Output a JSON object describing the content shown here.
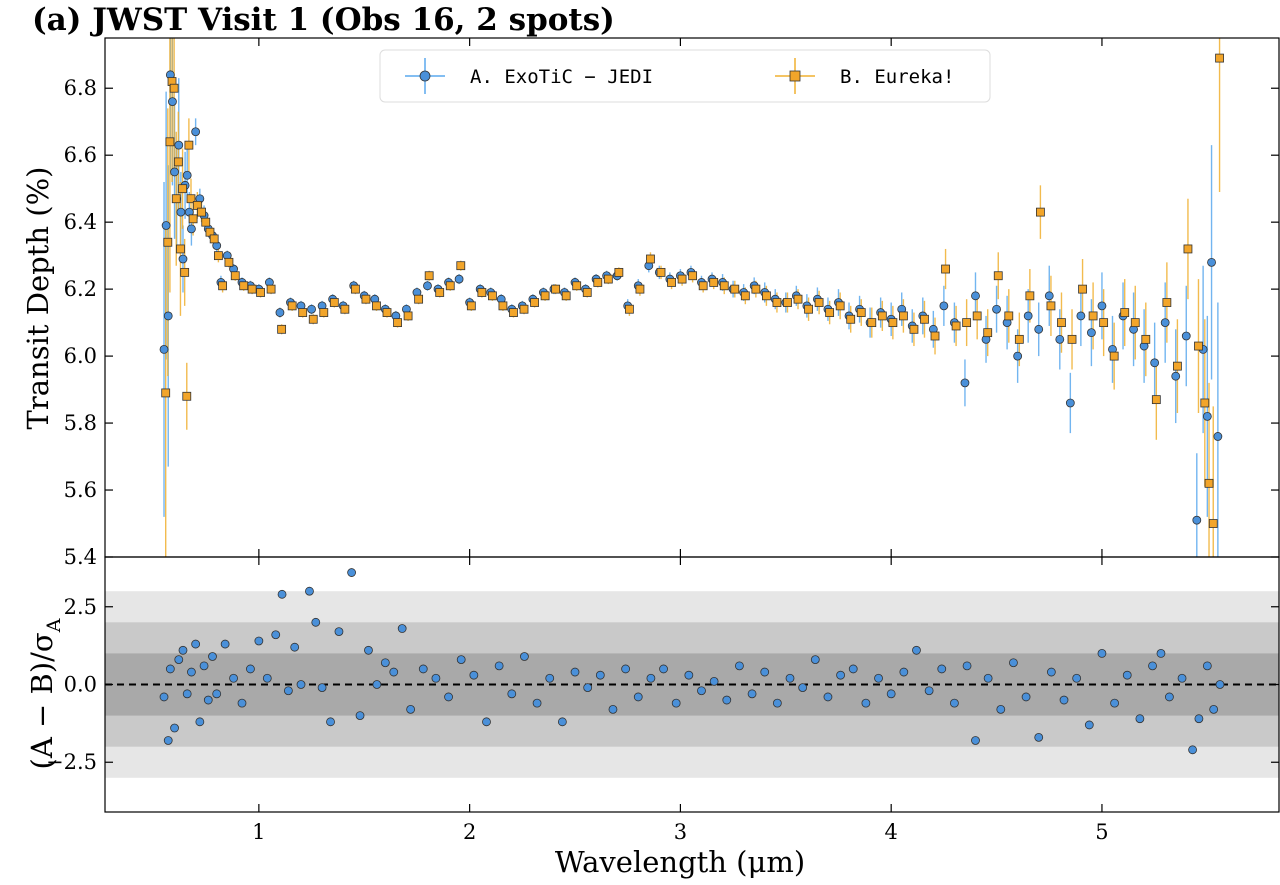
{
  "chart_data": [
    {
      "type": "scatter",
      "title": "(a) JWST Visit 1 (Obs 16, 2 spots)",
      "xlabel": "",
      "ylabel": "Transit Depth (%)",
      "xlim": [
        0.27,
        5.84
      ],
      "ylim": [
        5.4,
        6.95
      ],
      "xticks": [
        "1",
        "2",
        "3",
        "4",
        "5"
      ],
      "yticks": [
        "5.4",
        "5.6",
        "5.8",
        "6.0",
        "6.2",
        "6.4",
        "6.6",
        "6.8"
      ],
      "legend_placement": "top-center",
      "colors": {
        "A": "#4a90d9",
        "A_err": "#5aa9ee",
        "B": "#f2a52a",
        "B_err": "#f0b030",
        "edge": "#333333"
      },
      "series": [
        {
          "name": "A. ExoTiC − JEDI",
          "marker": "circle",
          "x": [
            0.55,
            0.56,
            0.57,
            0.58,
            0.59,
            0.6,
            0.61,
            0.62,
            0.63,
            0.64,
            0.65,
            0.66,
            0.67,
            0.68,
            0.7,
            0.72,
            0.74,
            0.76,
            0.78,
            0.8,
            0.82,
            0.85,
            0.88,
            0.92,
            0.96,
            1.0,
            1.05,
            1.1,
            1.15,
            1.2,
            1.25,
            1.3,
            1.35,
            1.4,
            1.45,
            1.5,
            1.55,
            1.6,
            1.65,
            1.7,
            1.75,
            1.8,
            1.85,
            1.9,
            1.95,
            2.0,
            2.05,
            2.1,
            2.15,
            2.2,
            2.25,
            2.3,
            2.35,
            2.4,
            2.45,
            2.5,
            2.55,
            2.6,
            2.65,
            2.7,
            2.75,
            2.8,
            2.85,
            2.9,
            2.95,
            3.0,
            3.05,
            3.1,
            3.15,
            3.2,
            3.25,
            3.3,
            3.35,
            3.4,
            3.45,
            3.5,
            3.55,
            3.6,
            3.65,
            3.7,
            3.75,
            3.8,
            3.85,
            3.9,
            3.95,
            4.0,
            4.05,
            4.1,
            4.15,
            4.2,
            4.25,
            4.3,
            4.35,
            4.4,
            4.45,
            4.5,
            4.55,
            4.6,
            4.65,
            4.7,
            4.75,
            4.8,
            4.85,
            4.9,
            4.95,
            5.0,
            5.05,
            5.1,
            5.15,
            5.2,
            5.25,
            5.3,
            5.35,
            5.4,
            5.45,
            5.48,
            5.5,
            5.52,
            5.55
          ],
          "y": [
            6.02,
            6.39,
            6.12,
            6.84,
            6.76,
            6.55,
            6.47,
            6.63,
            6.43,
            6.29,
            6.51,
            6.54,
            6.43,
            6.38,
            6.67,
            6.47,
            6.42,
            6.38,
            6.36,
            6.33,
            6.22,
            6.3,
            6.26,
            6.22,
            6.21,
            6.2,
            6.22,
            6.13,
            6.16,
            6.15,
            6.14,
            6.15,
            6.17,
            6.15,
            6.21,
            6.18,
            6.17,
            6.14,
            6.12,
            6.14,
            6.19,
            6.21,
            6.2,
            6.22,
            6.23,
            6.16,
            6.2,
            6.19,
            6.17,
            6.14,
            6.15,
            6.17,
            6.19,
            6.2,
            6.19,
            6.22,
            6.2,
            6.23,
            6.24,
            6.24,
            6.15,
            6.21,
            6.27,
            6.25,
            6.23,
            6.24,
            6.25,
            6.22,
            6.23,
            6.22,
            6.2,
            6.19,
            6.21,
            6.19,
            6.17,
            6.16,
            6.18,
            6.15,
            6.17,
            6.14,
            6.16,
            6.12,
            6.14,
            6.1,
            6.13,
            6.11,
            6.14,
            6.09,
            6.12,
            6.08,
            6.15,
            6.1,
            5.92,
            6.18,
            6.05,
            6.14,
            6.1,
            6.0,
            6.12,
            6.08,
            6.18,
            6.05,
            5.86,
            6.12,
            6.07,
            6.15,
            6.02,
            6.12,
            6.08,
            6.03,
            5.98,
            6.1,
            5.94,
            6.06,
            5.51,
            6.02,
            5.82,
            6.28,
            5.76
          ],
          "err": [
            0.5,
            0.4,
            0.45,
            0.3,
            0.25,
            0.2,
            0.15,
            0.2,
            0.12,
            0.1,
            0.1,
            0.08,
            0.06,
            0.05,
            0.04,
            0.03,
            0.03,
            0.02,
            0.02,
            0.02,
            0.02,
            0.015,
            0.015,
            0.015,
            0.015,
            0.015,
            0.015,
            0.015,
            0.015,
            0.015,
            0.015,
            0.015,
            0.015,
            0.015,
            0.015,
            0.015,
            0.015,
            0.015,
            0.015,
            0.015,
            0.015,
            0.015,
            0.015,
            0.015,
            0.015,
            0.015,
            0.015,
            0.015,
            0.015,
            0.015,
            0.015,
            0.015,
            0.015,
            0.015,
            0.015,
            0.015,
            0.015,
            0.015,
            0.015,
            0.015,
            0.02,
            0.02,
            0.02,
            0.02,
            0.02,
            0.02,
            0.02,
            0.02,
            0.02,
            0.025,
            0.025,
            0.025,
            0.025,
            0.03,
            0.03,
            0.03,
            0.03,
            0.035,
            0.035,
            0.035,
            0.04,
            0.04,
            0.04,
            0.045,
            0.045,
            0.05,
            0.05,
            0.05,
            0.055,
            0.055,
            0.06,
            0.06,
            0.07,
            0.07,
            0.07,
            0.07,
            0.08,
            0.08,
            0.08,
            0.08,
            0.09,
            0.09,
            0.09,
            0.09,
            0.1,
            0.1,
            0.1,
            0.1,
            0.11,
            0.11,
            0.12,
            0.12,
            0.14,
            0.15,
            0.2,
            0.25,
            0.3,
            0.35,
            0.4
          ]
        },
        {
          "name": "B. Eureka!",
          "marker": "square",
          "x": [
            0.55,
            0.56,
            0.57,
            0.58,
            0.59,
            0.6,
            0.61,
            0.62,
            0.63,
            0.64,
            0.65,
            0.66,
            0.67,
            0.68,
            0.7,
            0.72,
            0.74,
            0.76,
            0.78,
            0.8,
            0.82,
            0.85,
            0.88,
            0.92,
            0.96,
            1.0,
            1.05,
            1.1,
            1.15,
            1.2,
            1.25,
            1.3,
            1.35,
            1.4,
            1.45,
            1.5,
            1.55,
            1.6,
            1.65,
            1.7,
            1.75,
            1.8,
            1.85,
            1.9,
            1.95,
            2.0,
            2.05,
            2.1,
            2.15,
            2.2,
            2.25,
            2.3,
            2.35,
            2.4,
            2.45,
            2.5,
            2.55,
            2.6,
            2.65,
            2.7,
            2.75,
            2.8,
            2.85,
            2.9,
            2.95,
            3.0,
            3.05,
            3.1,
            3.15,
            3.2,
            3.25,
            3.3,
            3.35,
            3.4,
            3.45,
            3.5,
            3.55,
            3.6,
            3.65,
            3.7,
            3.75,
            3.8,
            3.85,
            3.9,
            3.95,
            4.0,
            4.05,
            4.1,
            4.15,
            4.2,
            4.25,
            4.3,
            4.35,
            4.4,
            4.45,
            4.5,
            4.55,
            4.6,
            4.65,
            4.7,
            4.75,
            4.8,
            4.85,
            4.9,
            4.95,
            5.0,
            5.05,
            5.1,
            5.15,
            5.2,
            5.25,
            5.3,
            5.35,
            5.4,
            5.45,
            5.48,
            5.5,
            5.52,
            5.55
          ],
          "y": [
            5.89,
            6.34,
            6.64,
            6.82,
            6.8,
            6.47,
            6.58,
            6.32,
            6.5,
            6.25,
            5.88,
            6.63,
            6.47,
            6.41,
            6.45,
            6.43,
            6.4,
            6.37,
            6.35,
            6.3,
            6.21,
            6.28,
            6.24,
            6.21,
            6.2,
            6.19,
            6.2,
            6.08,
            6.15,
            6.13,
            6.11,
            6.13,
            6.16,
            6.14,
            6.2,
            6.17,
            6.15,
            6.13,
            6.1,
            6.12,
            6.17,
            6.24,
            6.19,
            6.21,
            6.27,
            6.15,
            6.19,
            6.18,
            6.15,
            6.13,
            6.14,
            6.16,
            6.18,
            6.2,
            6.18,
            6.21,
            6.19,
            6.22,
            6.23,
            6.25,
            6.14,
            6.2,
            6.29,
            6.25,
            6.22,
            6.23,
            6.24,
            6.21,
            6.22,
            6.21,
            6.2,
            6.18,
            6.2,
            6.18,
            6.16,
            6.16,
            6.17,
            6.14,
            6.16,
            6.13,
            6.15,
            6.11,
            6.13,
            6.1,
            6.12,
            6.1,
            6.12,
            6.08,
            6.11,
            6.06,
            6.26,
            6.09,
            6.1,
            6.12,
            6.07,
            6.24,
            6.12,
            6.05,
            6.18,
            6.43,
            6.15,
            6.1,
            6.05,
            6.2,
            6.12,
            6.1,
            6.0,
            6.13,
            6.1,
            6.05,
            5.87,
            6.16,
            5.97,
            6.32,
            6.03,
            5.86,
            5.62,
            5.5,
            6.89
          ],
          "err": [
            0.5,
            0.4,
            0.45,
            0.3,
            0.25,
            0.2,
            0.15,
            0.2,
            0.12,
            0.1,
            0.1,
            0.08,
            0.06,
            0.05,
            0.04,
            0.03,
            0.03,
            0.02,
            0.02,
            0.02,
            0.02,
            0.015,
            0.015,
            0.015,
            0.015,
            0.015,
            0.015,
            0.015,
            0.015,
            0.015,
            0.015,
            0.015,
            0.015,
            0.015,
            0.015,
            0.015,
            0.015,
            0.015,
            0.015,
            0.015,
            0.015,
            0.015,
            0.015,
            0.015,
            0.015,
            0.015,
            0.015,
            0.015,
            0.015,
            0.015,
            0.015,
            0.015,
            0.015,
            0.015,
            0.015,
            0.015,
            0.015,
            0.015,
            0.015,
            0.015,
            0.02,
            0.02,
            0.02,
            0.02,
            0.02,
            0.02,
            0.02,
            0.02,
            0.02,
            0.025,
            0.025,
            0.025,
            0.025,
            0.03,
            0.03,
            0.03,
            0.03,
            0.035,
            0.035,
            0.035,
            0.04,
            0.04,
            0.04,
            0.045,
            0.045,
            0.05,
            0.05,
            0.05,
            0.055,
            0.055,
            0.06,
            0.06,
            0.07,
            0.07,
            0.07,
            0.07,
            0.08,
            0.08,
            0.08,
            0.08,
            0.09,
            0.09,
            0.09,
            0.09,
            0.1,
            0.1,
            0.1,
            0.1,
            0.11,
            0.11,
            0.12,
            0.12,
            0.14,
            0.15,
            0.2,
            0.25,
            0.3,
            0.35,
            0.4
          ]
        }
      ]
    },
    {
      "type": "scatter",
      "xlabel": "Wavelength (μm)",
      "ylabel": "(A − B)/σ",
      "ylabel_subscript": "A",
      "xlim": [
        0.27,
        5.84
      ],
      "ylim": [
        -4.1,
        4.1
      ],
      "xticks": [
        "1",
        "2",
        "3",
        "4",
        "5"
      ],
      "yticks": [
        "−2.5",
        "0.0",
        "2.5"
      ],
      "bands": [
        1,
        2,
        3
      ],
      "band_colors": [
        "#a9a9a9",
        "#c9c9c9",
        "#e6e6e6"
      ],
      "reference_line": 0,
      "series": [
        {
          "marker": "circle",
          "x": [
            0.55,
            0.57,
            0.58,
            0.6,
            0.62,
            0.64,
            0.66,
            0.68,
            0.7,
            0.72,
            0.74,
            0.76,
            0.78,
            0.8,
            0.84,
            0.88,
            0.92,
            0.96,
            1.0,
            1.04,
            1.08,
            1.11,
            1.14,
            1.17,
            1.2,
            1.24,
            1.27,
            1.3,
            1.34,
            1.38,
            1.44,
            1.48,
            1.52,
            1.56,
            1.6,
            1.64,
            1.68,
            1.72,
            1.78,
            1.84,
            1.9,
            1.96,
            2.02,
            2.08,
            2.14,
            2.2,
            2.26,
            2.32,
            2.38,
            2.44,
            2.5,
            2.56,
            2.62,
            2.68,
            2.74,
            2.8,
            2.86,
            2.92,
            2.98,
            3.04,
            3.1,
            3.16,
            3.22,
            3.28,
            3.34,
            3.4,
            3.46,
            3.52,
            3.58,
            3.64,
            3.7,
            3.76,
            3.82,
            3.88,
            3.94,
            4.0,
            4.06,
            4.12,
            4.18,
            4.24,
            4.3,
            4.36,
            4.4,
            4.46,
            4.52,
            4.58,
            4.64,
            4.7,
            4.76,
            4.82,
            4.88,
            4.94,
            5.0,
            5.06,
            5.12,
            5.18,
            5.24,
            5.28,
            5.32,
            5.38,
            5.43,
            5.46,
            5.5,
            5.53,
            5.56
          ],
          "y": [
            -0.4,
            -1.8,
            0.5,
            -1.4,
            0.8,
            1.1,
            -0.3,
            0.4,
            1.3,
            -1.2,
            0.6,
            -0.5,
            0.9,
            -0.3,
            1.3,
            0.2,
            -0.6,
            0.5,
            1.4,
            0.2,
            1.6,
            2.9,
            -0.2,
            1.2,
            0.0,
            3.0,
            2.0,
            -0.1,
            -1.2,
            1.7,
            3.6,
            -1.0,
            1.1,
            0.0,
            0.7,
            0.4,
            1.8,
            -0.8,
            0.5,
            0.2,
            -0.4,
            0.8,
            0.3,
            -1.2,
            0.6,
            -0.3,
            0.9,
            -0.6,
            0.2,
            -1.2,
            0.4,
            -0.1,
            0.3,
            -0.8,
            0.5,
            -0.4,
            0.2,
            0.5,
            -0.6,
            0.3,
            -0.2,
            0.1,
            -0.5,
            0.6,
            -0.3,
            0.4,
            -0.6,
            0.2,
            -0.1,
            0.8,
            -0.4,
            0.3,
            0.5,
            -0.6,
            0.2,
            -0.3,
            0.4,
            1.1,
            -0.2,
            0.5,
            -0.6,
            0.6,
            -1.8,
            0.2,
            -0.8,
            0.7,
            -0.4,
            -1.7,
            0.4,
            -0.5,
            0.2,
            -1.3,
            1.0,
            -0.6,
            0.3,
            -1.1,
            0.6,
            1.0,
            -0.4,
            0.2,
            -2.1,
            -1.1,
            0.6,
            -0.8,
            0.0
          ]
        }
      ]
    }
  ]
}
